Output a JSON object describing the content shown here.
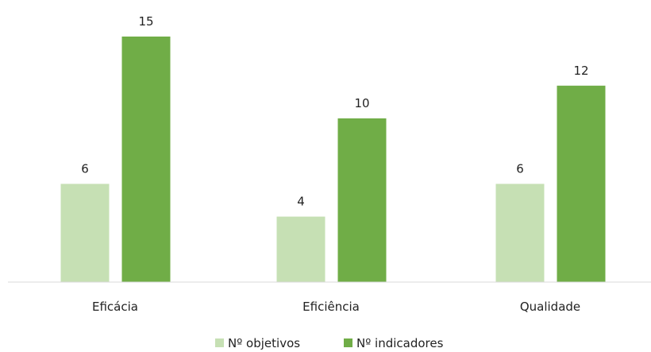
{
  "chart_data": {
    "type": "bar",
    "categories": [
      "Eficácia",
      "Eficiência",
      "Qualidade"
    ],
    "series": [
      {
        "name": "Nº objetivos",
        "values": [
          6,
          4,
          6
        ],
        "color": "#c6e0b4"
      },
      {
        "name": "Nº indicadores",
        "values": [
          15,
          10,
          12
        ],
        "color": "#70ad47"
      }
    ],
    "ylim": [
      0,
      16
    ],
    "grid": false,
    "legend": "bottom",
    "data_labels": true
  }
}
